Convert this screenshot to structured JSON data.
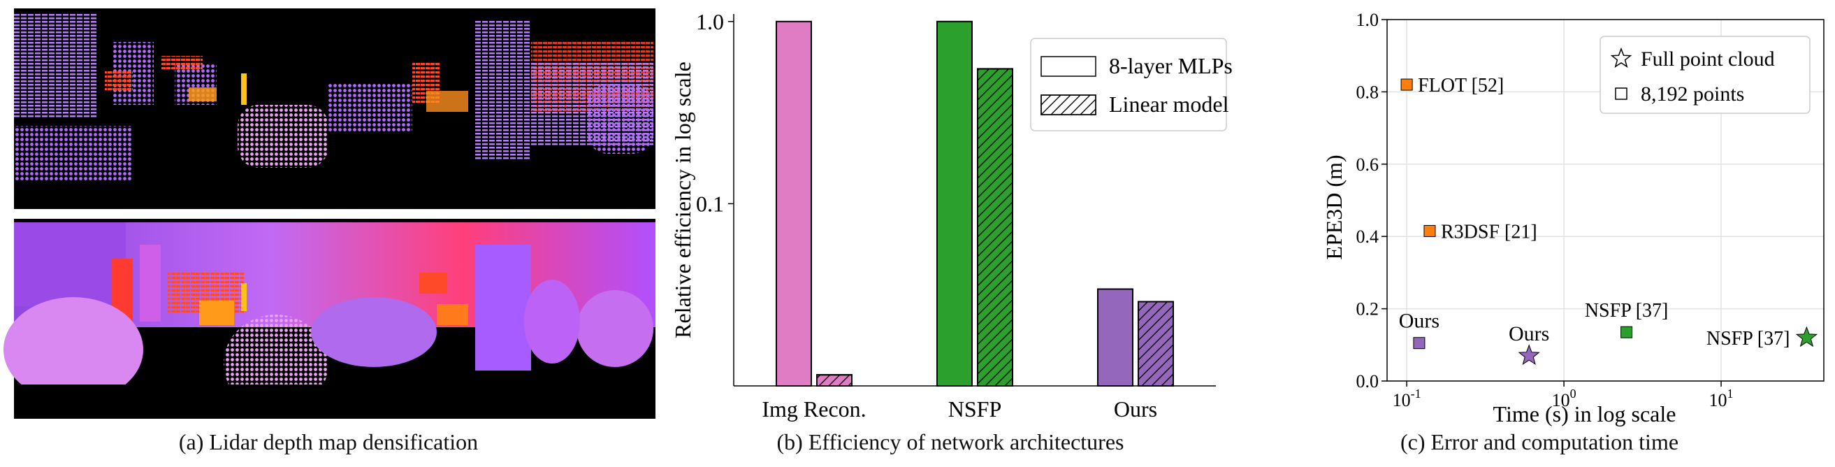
{
  "panel_a": {
    "caption": "(a) Lidar depth map densification",
    "colors": {
      "background": "#000000",
      "violet": "#9b4dff",
      "pink": "#e07be8",
      "red": "#ff3a3a",
      "orange": "#ff7a1a",
      "yellow": "#ffc21a"
    }
  },
  "panel_b": {
    "caption": "(b) Efficiency of network architectures",
    "chart_data": {
      "type": "bar",
      "ylabel": "Relative efficiency in log scale",
      "yscale": "log",
      "ylim": [
        0.01,
        1.1
      ],
      "yticks": [
        {
          "value": 1.0,
          "label": "1.0"
        },
        {
          "value": 0.1,
          "label": "0.1"
        }
      ],
      "categories": [
        "Img Recon.",
        "NSFP",
        "Ours"
      ],
      "series": [
        {
          "name": "8-layer MLPs",
          "hatch": false,
          "values": [
            1.0,
            1.0,
            0.034
          ]
        },
        {
          "name": "Linear model",
          "hatch": true,
          "values": [
            0.0115,
            0.55,
            0.029
          ]
        }
      ],
      "category_colors": [
        "#e07cc4",
        "#2ca02c",
        "#9467bd"
      ],
      "legend": [
        "8-layer MLPs",
        "Linear model"
      ],
      "legend_position": "top-right"
    }
  },
  "panel_c": {
    "caption": "(c) Error and computation time",
    "chart_data": {
      "type": "scatter",
      "xlabel": "Time (s) in log scale",
      "ylabel": "EPE3D (m)",
      "xscale": "log",
      "xlim": [
        0.075,
        45
      ],
      "ylim": [
        0.0,
        1.0
      ],
      "yticks": [
        "0.0",
        "0.2",
        "0.4",
        "0.6",
        "0.8",
        "1.0"
      ],
      "xticks": [
        {
          "value": 0.1,
          "base": "10",
          "exp": "-1"
        },
        {
          "value": 1,
          "base": "10",
          "exp": "0"
        },
        {
          "value": 10,
          "base": "10",
          "exp": "1"
        }
      ],
      "points": [
        {
          "label": "FLOT [52]",
          "x": 0.1,
          "y": 0.82,
          "marker": "square",
          "color": "#ff7f0e",
          "label_pos": "right"
        },
        {
          "label": "R3DSF [21]",
          "x": 0.14,
          "y": 0.415,
          "marker": "square",
          "color": "#ff7f0e",
          "label_pos": "right"
        },
        {
          "label": "Ours",
          "x": 0.12,
          "y": 0.105,
          "marker": "square",
          "color": "#9467bd",
          "label_pos": "above"
        },
        {
          "label": "Ours",
          "x": 0.6,
          "y": 0.07,
          "marker": "star",
          "color": "#9467bd",
          "label_pos": "above"
        },
        {
          "label": "NSFP [37]",
          "x": 2.5,
          "y": 0.135,
          "marker": "square",
          "color": "#2ca02c",
          "label_pos": "above"
        },
        {
          "label": "NSFP [37]",
          "x": 35,
          "y": 0.12,
          "marker": "star",
          "color": "#2ca02c",
          "label_pos": "left"
        }
      ],
      "legend": [
        {
          "marker": "star",
          "label": "Full point cloud"
        },
        {
          "marker": "square",
          "label": "8,192 points"
        }
      ],
      "legend_position": "top-right",
      "grid": true
    }
  }
}
